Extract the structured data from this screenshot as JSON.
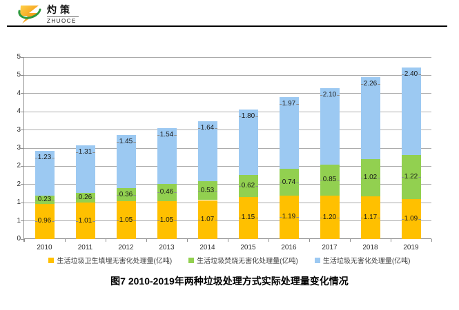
{
  "logo": {
    "name_cn": "灼策",
    "name_en": "ZHUOCE"
  },
  "chart_data": {
    "type": "bar",
    "stacked": true,
    "categories": [
      "2010",
      "2011",
      "2012",
      "2013",
      "2014",
      "2015",
      "2016",
      "2017",
      "2018",
      "2019"
    ],
    "series": [
      {
        "name": "生活垃圾卫生填埋无害化处理量(亿吨)",
        "color": "#FFC000",
        "values": [
          0.96,
          1.01,
          1.05,
          1.05,
          1.07,
          1.15,
          1.19,
          1.2,
          1.17,
          1.09
        ]
      },
      {
        "name": "生活垃圾焚烧无害化处理量(亿吨)",
        "color": "#92D050",
        "values": [
          0.23,
          0.26,
          0.36,
          0.46,
          0.53,
          0.62,
          0.74,
          0.85,
          1.02,
          1.22
        ]
      },
      {
        "name": "生活垃圾无害化处理量(亿吨)",
        "color": "#9CC9F2",
        "values": [
          1.23,
          1.31,
          1.45,
          1.54,
          1.64,
          1.8,
          1.97,
          2.1,
          2.26,
          2.4
        ]
      }
    ],
    "ylim": [
      0,
      5
    ],
    "y_tick_step": 0.5,
    "y_tick_labels_bottom_to_top": [
      "0",
      "1",
      "1",
      "2",
      "2",
      "3",
      "3",
      "4",
      "4",
      "5",
      "5"
    ],
    "grid": true,
    "data_labels": true,
    "legend_position": "bottom"
  },
  "caption": "图7  2010-2019年两种垃圾处理方式实际处理量变化情况"
}
